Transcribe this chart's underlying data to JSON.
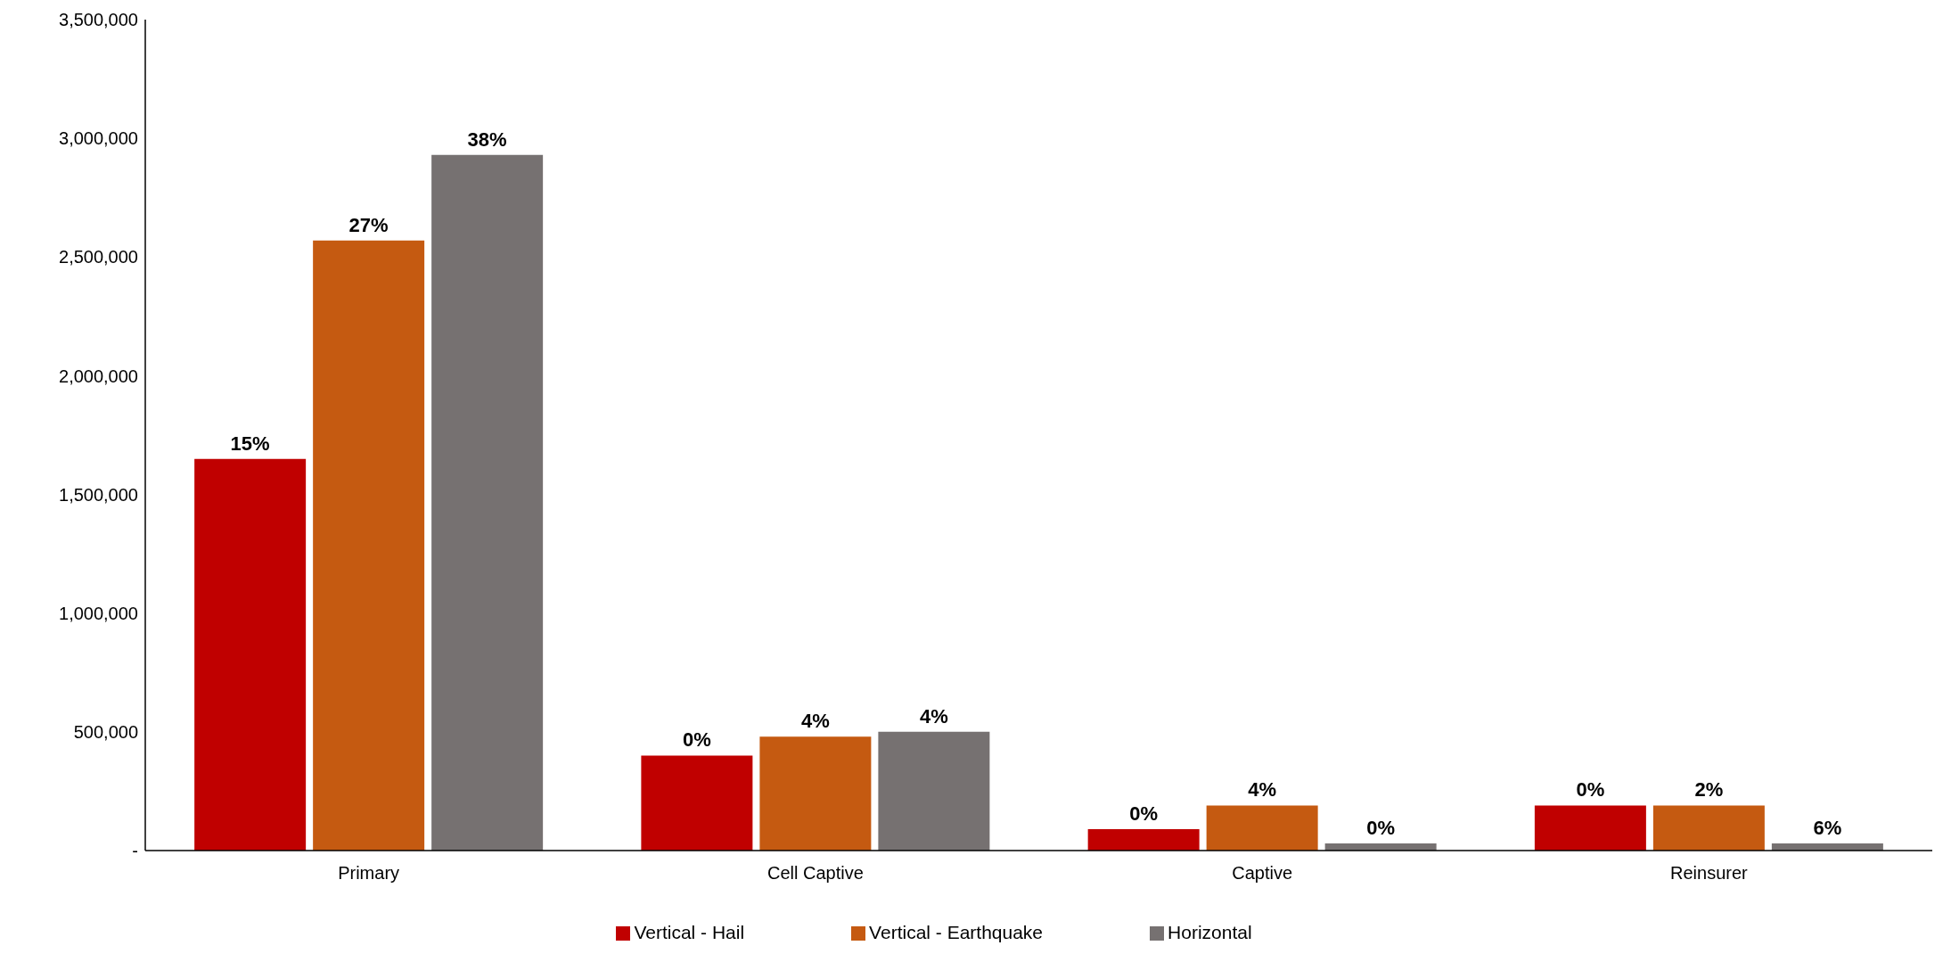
{
  "chart_data": {
    "type": "bar",
    "categories": [
      "Primary",
      "Cell Captive",
      "Captive",
      "Reinsurer"
    ],
    "series": [
      {
        "name": "Vertical - Hail",
        "color": "#c00000",
        "values": [
          1650000,
          400000,
          90000,
          190000
        ]
      },
      {
        "name": "Vertical - Earthquake",
        "color": "#c55a11",
        "values": [
          2570000,
          480000,
          190000,
          190000
        ]
      },
      {
        "name": "Horizontal",
        "color": "#767171",
        "values": [
          2930000,
          500000,
          30000,
          30000
        ]
      }
    ],
    "annotations": [
      "15%",
      "0%",
      "0%",
      "0%",
      "27%",
      "4%",
      "4%",
      "2%",
      "38%",
      "4%",
      "0%",
      "6%"
    ],
    "ylim": [
      0,
      3500000
    ],
    "yticks": [
      {
        "value": 0,
        "label": "-"
      },
      {
        "value": 500000,
        "label": "500,000"
      },
      {
        "value": 1000000,
        "label": "1,000,000"
      },
      {
        "value": 1500000,
        "label": "1,500,000"
      },
      {
        "value": 2000000,
        "label": "2,000,000"
      },
      {
        "value": 2500000,
        "label": "2,500,000"
      },
      {
        "value": 3000000,
        "label": "3,000,000"
      },
      {
        "value": 3500000,
        "label": "3,500,000"
      }
    ],
    "grid": false,
    "legend": "bottom"
  }
}
